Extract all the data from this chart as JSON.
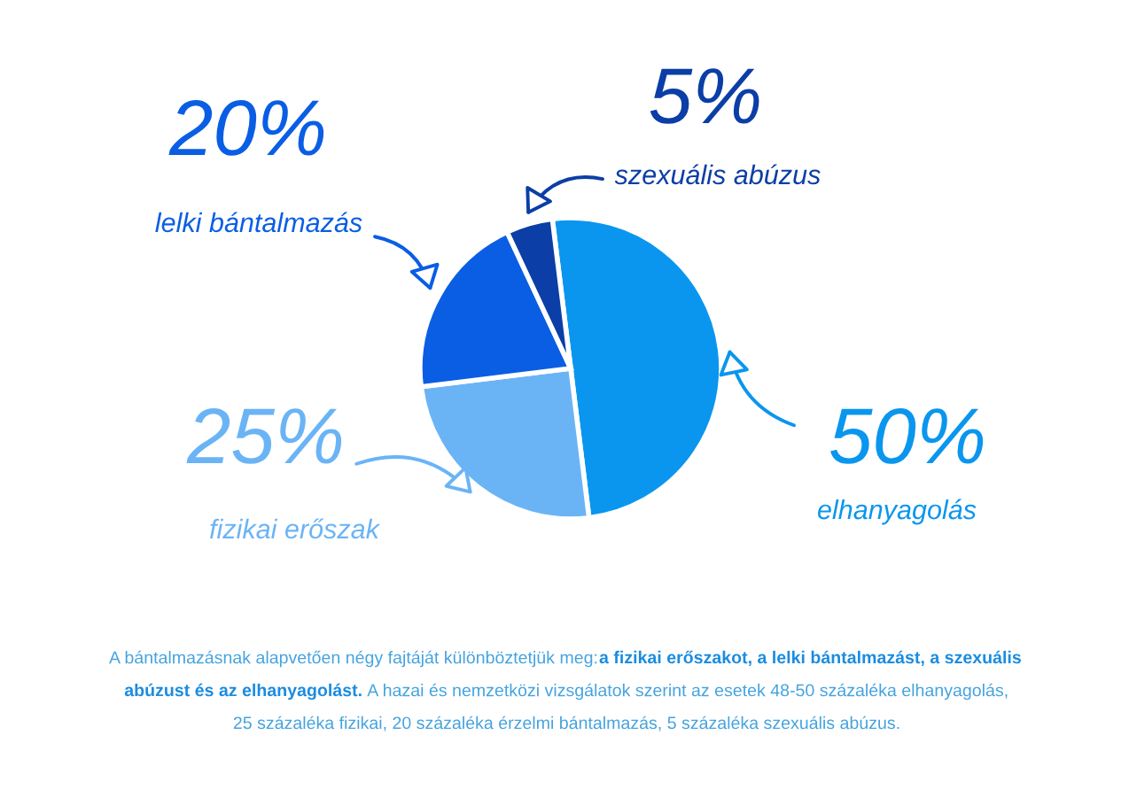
{
  "chart_data": {
    "type": "pie",
    "categories": [
      "elhanyagolás",
      "fizikai erőszak",
      "lelki bántalmazás",
      "szexuális abúzus"
    ],
    "values": [
      50,
      25,
      20,
      5
    ],
    "colors": [
      "#0a96ee",
      "#6ab4f6",
      "#0a5ee4",
      "#0b3ea6"
    ],
    "value_labels": [
      "50%",
      "25%",
      "20%",
      "5%"
    ],
    "annotations": [
      "A bántalmazásnak alapvetően négy fajtáját különböztetjük meg:",
      "a fizikai erőszakot, a lelki bántalmazást, a szexuális",
      "abúzust és az elhanyagolást.",
      "A hazai és nemzetközi vizsgálatok szerint az esetek 48-50 százaléka elhanyagolás,",
      "25 százaléka fizikai, 20 százaléka érzelmi bántalmazás, 5 százaléka szexuális abúzus."
    ]
  }
}
